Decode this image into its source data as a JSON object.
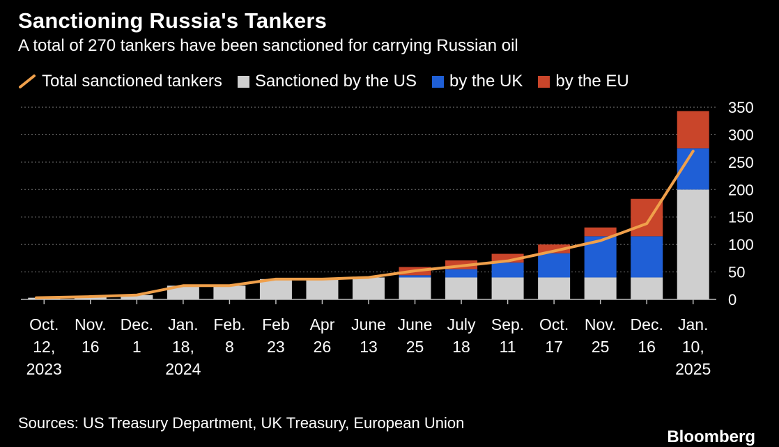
{
  "title": "Sanctioning Russia's Tankers",
  "subtitle": "A total of 270 tankers have been sanctioned for carrying Russian oil",
  "legend": [
    {
      "label": "Total sanctioned tankers",
      "kind": "line",
      "color": "#f0a04b"
    },
    {
      "label": "Sanctioned by the US",
      "kind": "box",
      "color": "#cfcfcf"
    },
    {
      "label": "by the UK",
      "kind": "box",
      "color": "#1f5fd6"
    },
    {
      "label": "by the EU",
      "kind": "box",
      "color": "#c9452a"
    }
  ],
  "source": "Sources: US Treasury Department, UK Treasury, European Union",
  "brand": "Bloomberg",
  "colors": {
    "background": "#000000",
    "us": "#cfcfcf",
    "uk": "#1f5fd6",
    "eu": "#c9452a",
    "line": "#f0a04b",
    "grid": "#666666",
    "text": "#ffffff"
  },
  "chart_data": {
    "type": "bar",
    "stacked": true,
    "categories": [
      [
        "Oct.",
        "12,",
        "2023"
      ],
      [
        "Nov.",
        "16"
      ],
      [
        "Dec.",
        "1"
      ],
      [
        "Jan.",
        "18,",
        "2024"
      ],
      [
        "Feb.",
        "8"
      ],
      [
        "Feb",
        "23"
      ],
      [
        "Apr",
        "26"
      ],
      [
        "June",
        "13"
      ],
      [
        "June",
        "25"
      ],
      [
        "July",
        "18"
      ],
      [
        "Sep.",
        "11"
      ],
      [
        "Oct.",
        "17"
      ],
      [
        "Nov.",
        "25"
      ],
      [
        "Dec.",
        "16"
      ],
      [
        "Jan.",
        "10,",
        "2025"
      ]
    ],
    "series": [
      {
        "name": "Sanctioned by the US",
        "values": [
          3,
          5,
          8,
          25,
          25,
          37,
          37,
          40,
          40,
          40,
          40,
          40,
          40,
          40,
          200
        ]
      },
      {
        "name": "by the UK",
        "values": [
          0,
          0,
          0,
          0,
          0,
          0,
          0,
          0,
          4,
          15,
          27,
          44,
          75,
          75,
          75
        ]
      },
      {
        "name": "by the EU",
        "values": [
          0,
          0,
          0,
          0,
          0,
          0,
          0,
          0,
          15,
          16,
          16,
          16,
          16,
          68,
          68
        ]
      },
      {
        "name": "Total sanctioned tankers",
        "type": "line",
        "values": [
          3,
          5,
          8,
          25,
          25,
          37,
          37,
          40,
          52,
          61,
          70,
          88,
          107,
          138,
          270
        ]
      }
    ],
    "yticks": [
      0,
      50,
      100,
      150,
      200,
      250,
      300,
      350
    ],
    "ylim": [
      0,
      350
    ],
    "y_axis_position": "right",
    "grid": true,
    "legend_position": "top-left"
  }
}
